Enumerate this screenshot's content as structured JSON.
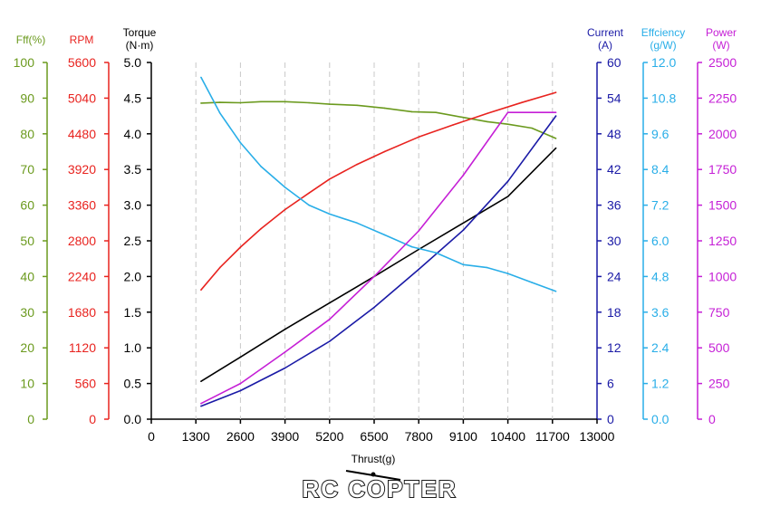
{
  "chart_data": {
    "type": "line",
    "xlabel": "Thrust(g)",
    "x_ticks": [
      "0",
      "1300",
      "2600",
      "3900",
      "5200",
      "6500",
      "7800",
      "9100",
      "10400",
      "11700",
      "13000"
    ],
    "xlim": [
      0,
      13000
    ],
    "axes": [
      {
        "id": "fff",
        "title": "Fff(%)",
        "unit": "",
        "color": "#6b9a1e",
        "min": 0,
        "max": 100,
        "step": 10,
        "decimals": 0
      },
      {
        "id": "rpm",
        "title": "RPM",
        "unit": "",
        "color": "#e8231f",
        "min": 0,
        "max": 5600,
        "step": 560,
        "decimals": 0
      },
      {
        "id": "torque",
        "title": "Torque",
        "unit": "(N·m)",
        "color": "#000000",
        "min": 0,
        "max": 5,
        "step": 0.5,
        "decimals": 1
      },
      {
        "id": "current",
        "title": "Current",
        "unit": "(A)",
        "color": "#1a1aa6",
        "min": 0,
        "max": 60,
        "step": 6,
        "decimals": 0
      },
      {
        "id": "eff",
        "title": "Effciency",
        "unit": "(g/W)",
        "color": "#29aee8",
        "min": 0,
        "max": 12,
        "step": 1.2,
        "decimals": 1
      },
      {
        "id": "power",
        "title": "Power",
        "unit": "(W)",
        "color": "#c51fd6",
        "min": 0,
        "max": 2500,
        "step": 250,
        "decimals": 0
      }
    ],
    "series": [
      {
        "name": "Fff",
        "axis": "fff",
        "color": "#6b9a1e",
        "x": [
          1450,
          2000,
          2600,
          3200,
          3900,
          4600,
          5200,
          6000,
          6800,
          7600,
          8300,
          9100,
          9800,
          10400,
          11100,
          11800
        ],
        "y": [
          88.6,
          88.8,
          88.7,
          89.0,
          89.0,
          88.7,
          88.3,
          88.0,
          87.2,
          86.2,
          86.0,
          84.6,
          83.4,
          82.7,
          81.6,
          78.7
        ]
      },
      {
        "name": "RPM",
        "axis": "rpm",
        "color": "#e8231f",
        "x": [
          1450,
          2000,
          2600,
          3200,
          3900,
          4600,
          5200,
          6000,
          6800,
          7800,
          8800,
          9800,
          10800,
          11800
        ],
        "y": [
          2030,
          2380,
          2700,
          2990,
          3290,
          3550,
          3770,
          4000,
          4200,
          4430,
          4620,
          4800,
          4970,
          5130
        ]
      },
      {
        "name": "Torque",
        "axis": "torque",
        "color": "#000000",
        "x": [
          1450,
          2600,
          3900,
          5200,
          6500,
          7800,
          9100,
          10400,
          11800
        ],
        "y": [
          0.53,
          0.87,
          1.26,
          1.63,
          2.0,
          2.38,
          2.75,
          3.12,
          3.8
        ]
      },
      {
        "name": "Current",
        "axis": "current",
        "color": "#1a1aa6",
        "x": [
          1450,
          2600,
          3900,
          5200,
          6500,
          7800,
          9100,
          10400,
          11800
        ],
        "y": [
          2.2,
          4.8,
          8.6,
          13.1,
          18.8,
          25.2,
          31.8,
          40.0,
          51.0
        ]
      },
      {
        "name": "Effciency",
        "axis": "eff",
        "color": "#29aee8",
        "x": [
          1450,
          2000,
          2600,
          3200,
          3900,
          4600,
          5200,
          6000,
          6800,
          7600,
          8300,
          9100,
          9800,
          10400,
          11100,
          11800
        ],
        "y": [
          11.5,
          10.3,
          9.3,
          8.5,
          7.8,
          7.2,
          6.9,
          6.6,
          6.2,
          5.8,
          5.6,
          5.2,
          5.1,
          4.9,
          4.6,
          4.3
        ]
      },
      {
        "name": "Power",
        "axis": "power",
        "color": "#c51fd6",
        "x": [
          1450,
          2600,
          3900,
          5200,
          6500,
          7800,
          9100,
          10400,
          11800
        ],
        "y": [
          110,
          250,
          470,
          700,
          1000,
          1320,
          1710,
          2150,
          2150
        ]
      }
    ]
  },
  "logo": {
    "text": "RC COPTER"
  }
}
